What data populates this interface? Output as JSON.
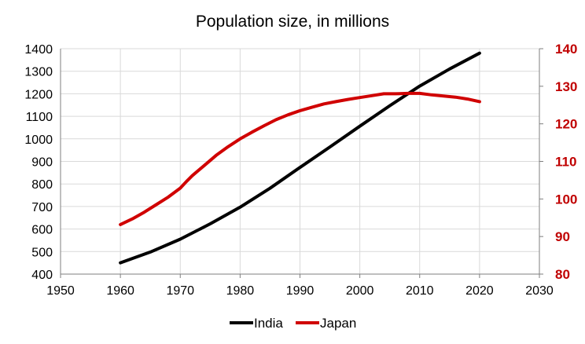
{
  "chart_data": {
    "type": "line",
    "title": "Population size, in millions",
    "xlim": [
      1950,
      2030
    ],
    "x_ticks": [
      1950,
      1960,
      1970,
      1980,
      1990,
      2000,
      2010,
      2020,
      2030
    ],
    "ylim_left": [
      400,
      1400
    ],
    "y_ticks_left": [
      400,
      500,
      600,
      700,
      800,
      900,
      1000,
      1100,
      1200,
      1300,
      1400
    ],
    "ylim_right": [
      80,
      140
    ],
    "y_ticks_right": [
      80,
      90,
      100,
      110,
      120,
      130,
      140
    ],
    "grid": "horizontal and vertical",
    "legend_position": "bottom",
    "series": [
      {
        "name": "India",
        "axis": "left",
        "color": "#000000",
        "x": [
          1960,
          1965,
          1970,
          1975,
          1980,
          1985,
          1990,
          1995,
          2000,
          2005,
          2010,
          2015,
          2020
        ],
        "y": [
          450,
          498,
          555,
          623,
          697,
          781,
          873,
          964,
          1056,
          1147,
          1234,
          1310,
          1380
        ]
      },
      {
        "name": "Japan",
        "axis": "right",
        "color": "#d00000",
        "x": [
          1960,
          1962,
          1964,
          1966,
          1968,
          1970,
          1971,
          1972,
          1974,
          1976,
          1978,
          1980,
          1982,
          1984,
          1986,
          1988,
          1990,
          1992,
          1994,
          1996,
          1998,
          2000,
          2002,
          2004,
          2006,
          2008,
          2010,
          2012,
          2014,
          2016,
          2018,
          2020
        ],
        "y": [
          93.2,
          94.7,
          96.5,
          98.5,
          100.5,
          102.9,
          104.6,
          106.2,
          108.9,
          111.6,
          113.9,
          116.0,
          117.8,
          119.5,
          121.1,
          122.4,
          123.5,
          124.4,
          125.3,
          125.9,
          126.5,
          127.0,
          127.5,
          128.0,
          128.0,
          128.1,
          128.1,
          127.7,
          127.4,
          127.1,
          126.6,
          125.9
        ]
      }
    ]
  },
  "legend": [
    {
      "label": "India",
      "color": "#000000"
    },
    {
      "label": "Japan",
      "color": "#d00000"
    }
  ],
  "colors": {
    "india_line": "#000000",
    "japan_line": "#d00000",
    "right_axis_text": "#c00000"
  }
}
